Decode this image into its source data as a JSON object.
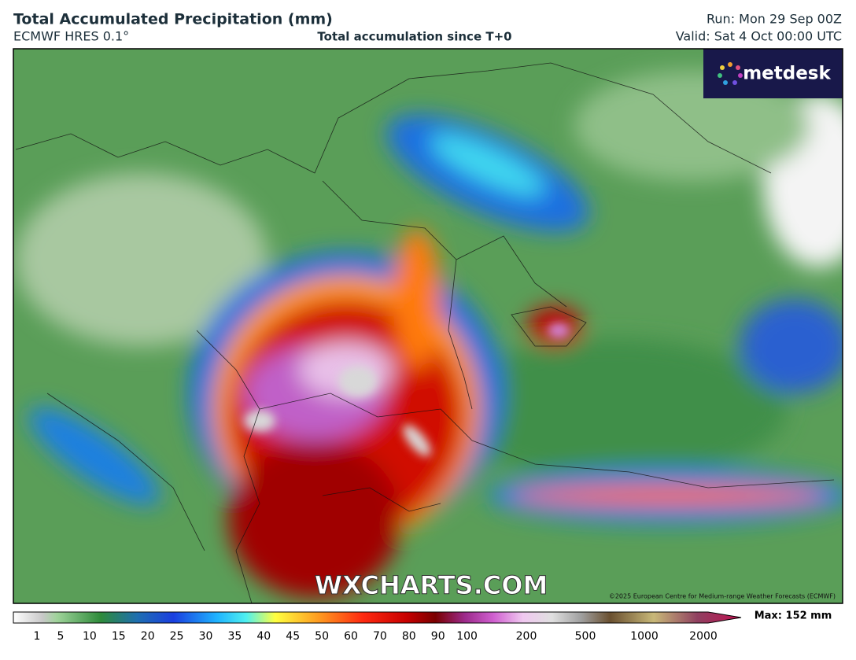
{
  "header": {
    "title": "Total Accumulated Precipitation (mm)",
    "subtitle": "ECMWF HRES 0.1°",
    "center_text": "Total accumulation since T+0",
    "run": "Run: Mon 29 Sep 00Z",
    "valid": "Valid: Sat 4 Oct 00:00 UTC"
  },
  "logo": "metdesk",
  "watermark": "WXCHARTS.COM",
  "copyright": "©2025 European Centre for Medium-range Weather Forecasts (ECMWF)",
  "colorbar": {
    "labels": [
      "1",
      "5",
      "10",
      "15",
      "20",
      "25",
      "30",
      "35",
      "40",
      "45",
      "50",
      "60",
      "70",
      "80",
      "90",
      "100",
      "200",
      "500",
      "1000",
      "2000"
    ],
    "max_label": "Max: 152 mm"
  }
}
